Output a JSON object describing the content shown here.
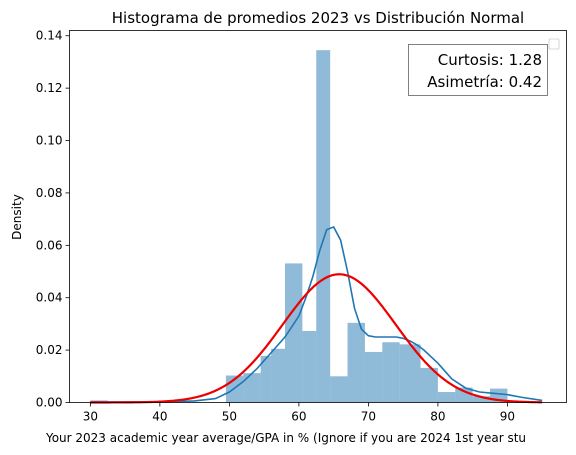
{
  "chart_data": {
    "type": "bar",
    "title": "Histograma de promedios 2023 vs Distribución Normal",
    "xlabel": "Your 2023 academic year average/GPA in % (Ignore if you are 2024 1st year stu",
    "ylabel": "Density",
    "xlim": [
      27.0,
      98.5
    ],
    "ylim": [
      0,
      0.142
    ],
    "x_ticks": [
      30,
      40,
      50,
      60,
      70,
      80,
      90
    ],
    "x_tick_labels": [
      "30",
      "40",
      "50",
      "60",
      "70",
      "80",
      "90"
    ],
    "y_ticks": [
      0.0,
      0.02,
      0.04,
      0.06,
      0.08,
      0.1,
      0.12,
      0.14
    ],
    "y_tick_labels": [
      "0.00",
      "0.02",
      "0.04",
      "0.06",
      "0.08",
      "0.10",
      "0.12",
      "0.14"
    ],
    "grid": false,
    "legend_placement": "upper right",
    "colors": {
      "bars": "#1f77b4",
      "bars_opacity": 0.5,
      "kde": "#1f77b4",
      "normal": "#ee0000"
    },
    "histogram": {
      "bin_edges": [
        30.0,
        32.5,
        35.0,
        37.5,
        40.0,
        42.5,
        45.0,
        47.5,
        49.5,
        52.0,
        54.5,
        56.0,
        58.0,
        60.5,
        62.5,
        64.5,
        67.0,
        69.5,
        72.0,
        74.5,
        77.5,
        80.0,
        82.5,
        85.0,
        87.5,
        90.0
      ],
      "densities": [
        0.0008,
        0,
        0,
        0,
        0,
        0,
        0,
        0,
        0.0103,
        0.0112,
        0.0178,
        0.0205,
        0.0531,
        0.0273,
        0.1345,
        0.01,
        0.0304,
        0.0193,
        0.023,
        0.0222,
        0.0132,
        0.004,
        0.0057,
        0.0024,
        0.0053
      ]
    },
    "series": [
      {
        "style": "kde",
        "x": [
          30,
          35,
          40,
          45,
          48,
          50,
          52,
          54,
          56,
          58,
          60,
          61,
          62,
          63,
          64,
          65,
          66,
          67,
          68,
          69,
          70,
          71,
          72,
          73,
          74,
          75,
          76,
          77,
          78,
          79,
          80,
          81,
          82,
          84,
          86,
          88,
          90,
          92,
          95
        ],
        "y": [
          0.0002,
          0.0002,
          0.0002,
          0.0006,
          0.0015,
          0.004,
          0.008,
          0.013,
          0.019,
          0.025,
          0.033,
          0.04,
          0.048,
          0.058,
          0.066,
          0.067,
          0.062,
          0.05,
          0.036,
          0.028,
          0.0255,
          0.025,
          0.025,
          0.025,
          0.025,
          0.0245,
          0.0235,
          0.022,
          0.02,
          0.0175,
          0.015,
          0.012,
          0.009,
          0.0055,
          0.004,
          0.0035,
          0.003,
          0.002,
          0.0008
        ]
      },
      {
        "style": "normal",
        "mean": 65.8,
        "std": 8.15
      }
    ],
    "annotation": {
      "lines": [
        "Curtosis: 1.28",
        "Asimetría: 0.42"
      ]
    }
  }
}
